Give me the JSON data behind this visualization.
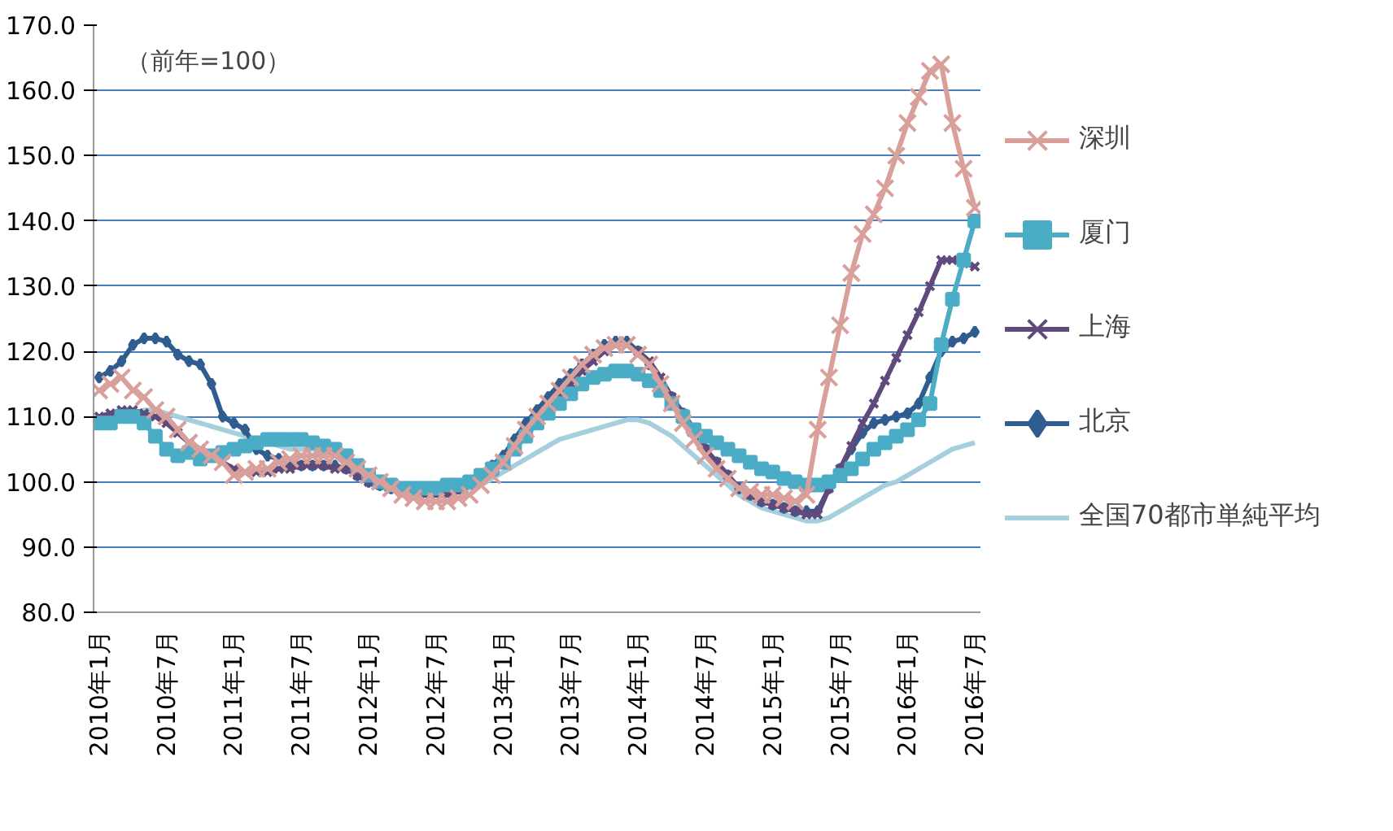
{
  "chart_data": {
    "type": "line",
    "annotations": [
      "（前年=100）"
    ],
    "categories": [
      "2010年1月",
      null,
      null,
      null,
      null,
      null,
      "2010年7月",
      null,
      null,
      null,
      null,
      null,
      "2011年1月",
      null,
      null,
      null,
      null,
      null,
      "2011年7月",
      null,
      null,
      null,
      null,
      null,
      "2012年1月",
      null,
      null,
      null,
      null,
      null,
      "2012年7月",
      null,
      null,
      null,
      null,
      null,
      "2013年1月",
      null,
      null,
      null,
      null,
      null,
      "2013年7月",
      null,
      null,
      null,
      null,
      null,
      "2014年1月",
      null,
      null,
      null,
      null,
      null,
      "2014年7月",
      null,
      null,
      null,
      null,
      null,
      "2015年1月",
      null,
      null,
      null,
      null,
      null,
      "2015年7月",
      null,
      null,
      null,
      null,
      null,
      "2016年1月",
      null,
      null,
      null,
      null,
      null,
      "2016年7月"
    ],
    "ylim": [
      80,
      170
    ],
    "yticks": [
      {
        "value": 80,
        "label": "80.0"
      },
      {
        "value": 90,
        "label": "90.0"
      },
      {
        "value": 100,
        "label": "100.0"
      },
      {
        "value": 110,
        "label": "110.0"
      },
      {
        "value": 120,
        "label": "120.0"
      },
      {
        "value": 130,
        "label": "130.0"
      },
      {
        "value": 140,
        "label": "140.0"
      },
      {
        "value": 150,
        "label": "150.0"
      },
      {
        "value": 160,
        "label": "160.0"
      },
      {
        "value": 170,
        "label": "170.0"
      }
    ],
    "grid": "y",
    "legend": "right",
    "line_style": "solid",
    "series": [
      {
        "name": "深圳",
        "color": "#d9a09b",
        "marker": "cross",
        "values": [
          114,
          115,
          116,
          114,
          113,
          111,
          110,
          108,
          106,
          105,
          104,
          103,
          101,
          101.5,
          102,
          102,
          103,
          103.5,
          104,
          104,
          104,
          104,
          103,
          102,
          101,
          100,
          99,
          98,
          97.5,
          97,
          97,
          97,
          97.5,
          98,
          99.5,
          101,
          103,
          105.5,
          108,
          110,
          112,
          114,
          116,
          118,
          119.5,
          120.5,
          121,
          121,
          119.5,
          118,
          115,
          112,
          109,
          106.5,
          104,
          102,
          100.5,
          99,
          98.5,
          98,
          98,
          97.5,
          97,
          98,
          108,
          116,
          124,
          132,
          138,
          141,
          145,
          150,
          155,
          159,
          163,
          164,
          155,
          148,
          142
        ]
      },
      {
        "name": "厦门",
        "color": "#4bacc6",
        "marker": "square",
        "values": [
          109,
          109,
          110,
          110,
          109,
          107,
          105,
          104,
          104.5,
          103.5,
          104,
          104.5,
          105,
          105.5,
          106,
          106.5,
          106.5,
          106.5,
          106.5,
          106,
          105.5,
          105,
          104,
          102.5,
          101,
          100,
          99.5,
          99,
          99,
          99,
          99,
          99.5,
          99.5,
          100,
          101,
          102,
          103,
          105,
          107,
          109,
          110.5,
          112,
          113.5,
          115,
          116,
          116.5,
          117,
          117,
          116.5,
          115.5,
          114,
          112,
          110,
          108,
          107,
          106,
          105,
          104,
          103,
          102,
          101.5,
          100.5,
          100,
          99.5,
          99.5,
          100,
          101,
          102,
          103.5,
          105,
          106,
          107,
          108,
          109.5,
          112,
          121,
          128,
          134,
          140
        ]
      },
      {
        "name": "上海",
        "color": "#604a7b",
        "marker": "cross",
        "values": [
          110,
          110.5,
          111,
          111,
          110.5,
          110,
          109,
          107.5,
          106,
          105,
          104,
          103,
          102,
          101.5,
          101.5,
          101.5,
          102,
          102,
          102.5,
          102.5,
          102.5,
          102,
          102,
          101,
          100,
          99.5,
          99,
          98.5,
          98.5,
          98,
          98,
          98,
          98.5,
          99.5,
          100.5,
          101.5,
          103,
          105,
          107,
          109,
          111,
          113,
          115,
          117,
          118.5,
          120,
          121,
          121,
          120,
          118.5,
          116,
          113,
          110.5,
          108,
          105,
          103,
          101,
          99,
          98,
          97,
          96.5,
          96,
          95.5,
          95,
          95,
          99,
          102,
          105.5,
          109,
          112,
          115.5,
          119,
          122.5,
          126,
          130,
          134,
          134,
          133.5,
          133
        ]
      },
      {
        "name": "北京",
        "color": "#2f5d8f",
        "marker": "diamond",
        "values": [
          116,
          117,
          118.5,
          121,
          122,
          122,
          121.5,
          119.5,
          118.5,
          118,
          115,
          110,
          109,
          108,
          105,
          104,
          103.5,
          103,
          102.5,
          102.5,
          102.5,
          102.5,
          102,
          101,
          100,
          99.5,
          99,
          98.5,
          98.5,
          98.5,
          98.5,
          98.5,
          99,
          100,
          101,
          102.5,
          104,
          106.5,
          109,
          111,
          113,
          115,
          116.5,
          118,
          119.5,
          121,
          121.5,
          121.5,
          120,
          118,
          115.5,
          113,
          110.5,
          108,
          105,
          103,
          101,
          99,
          98,
          97,
          96.5,
          96,
          95.5,
          95.5,
          95.5,
          99,
          102,
          105,
          107.5,
          109,
          109.5,
          110,
          110.5,
          112,
          116,
          120,
          121.5,
          122,
          123
        ]
      },
      {
        "name": "全国70都市単純平均",
        "color": "#a5cfdd",
        "marker": "none",
        "values": [
          109,
          109.5,
          110,
          110.5,
          111,
          111,
          110.5,
          110,
          109.5,
          109,
          108.5,
          108,
          107.5,
          107,
          106.5,
          106,
          105.5,
          105,
          105,
          105,
          104.5,
          104,
          103,
          102,
          101,
          100,
          99.5,
          99,
          98.5,
          98.5,
          98.5,
          98.5,
          98.5,
          99,
          99.5,
          100.5,
          101.5,
          102.5,
          103.5,
          104.5,
          105.5,
          106.5,
          107,
          107.5,
          108,
          108.5,
          109,
          109.5,
          109.5,
          109,
          108,
          107,
          105.5,
          104,
          102.5,
          101,
          99.5,
          98,
          97,
          96,
          95.5,
          95,
          94.5,
          94,
          94,
          94.5,
          95.5,
          96.5,
          97.5,
          98.5,
          99.5,
          100,
          101,
          102,
          103,
          104,
          105,
          105.5,
          106
        ]
      }
    ]
  }
}
